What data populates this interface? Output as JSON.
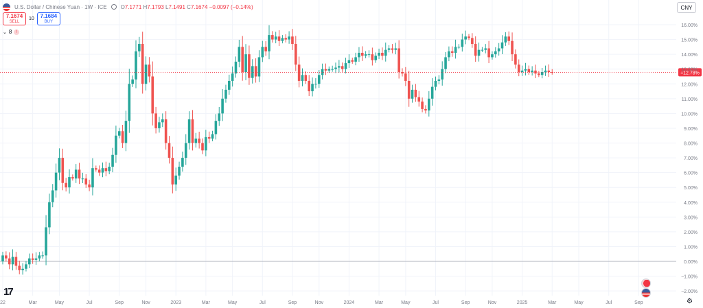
{
  "header": {
    "symbol": "U.S. Dollar / Chinese Yuan · 1W · ICE",
    "ohlc": {
      "open_label": "O",
      "open": "7.1771",
      "high_label": "H",
      "high": "7.1793",
      "low_label": "L",
      "low": "7.1491",
      "close_label": "C",
      "close": "7.1674",
      "change": "−0.0097 (−0.14%)"
    },
    "currency_button": "CNY"
  },
  "trade": {
    "sell_price": "7.1674",
    "sell_label": "SELL",
    "spread": "10",
    "buy_price": "7.1684",
    "buy_label": "BUY"
  },
  "events": {
    "count": "8",
    "alert_glyph": "!"
  },
  "logo": "17",
  "settings_glyph": "⚙",
  "colors": {
    "up": "#26a69a",
    "down": "#ef5350",
    "last_price_label": "#f23645",
    "grid": "#f0f3fa",
    "axis_text": "#787b86",
    "zero_line": "#b2b5be"
  },
  "chart_data": {
    "type": "candlestick",
    "title": "",
    "xlabel": "",
    "ylabel": "",
    "y_axis": {
      "unit": "%",
      "ylim": [
        -3.0,
        16.5
      ],
      "ticks": [
        "16.00%",
        "15.00%",
        "14.00%",
        "13.00%",
        "12.00%",
        "11.00%",
        "10.00%",
        "9.00%",
        "8.00%",
        "7.00%",
        "6.00%",
        "5.00%",
        "4.00%",
        "3.00%",
        "2.00%",
        "1.00%",
        "0.00%",
        "−1.00%",
        "−2.00%"
      ],
      "tick_values": [
        16,
        15,
        14,
        13,
        12,
        11,
        10,
        9,
        8,
        7,
        6,
        5,
        4,
        3,
        2,
        1,
        0,
        -1,
        -2
      ]
    },
    "x_axis": {
      "ticks": [
        "22",
        "Mar",
        "May",
        "Jul",
        "Sep",
        "Nov",
        "2023",
        "Mar",
        "May",
        "Jul",
        "Sep",
        "Nov",
        "2024",
        "Mar",
        "May",
        "Jul",
        "Sep",
        "Nov",
        "2025",
        "Mar",
        "May",
        "Jul",
        "Sep"
      ],
      "tick_weeks": [
        0,
        9,
        17,
        26,
        35,
        43,
        52,
        61,
        69,
        78,
        87,
        95,
        104,
        113,
        121,
        130,
        139,
        147,
        156,
        165,
        173,
        182,
        191
      ]
    },
    "last_value": "+12.78%",
    "last_value_num": 12.78,
    "baseline": 0,
    "grid": true,
    "weekly_closes_pct": [
      0.4,
      0.2,
      -0.2,
      0.3,
      -0.3,
      -0.6,
      -0.5,
      -0.2,
      0.2,
      0.1,
      0.2,
      0.4,
      0.4,
      2.3,
      4.0,
      4.8,
      6.0,
      7.0,
      5.3,
      5.0,
      5.7,
      5.6,
      6.2,
      5.6,
      5.6,
      5.2,
      5.0,
      6.3,
      6.2,
      6.0,
      6.3,
      6.1,
      6.4,
      7.2,
      8.5,
      8.8,
      8.0,
      9.5,
      12.0,
      12.3,
      14.2,
      14.7,
      12.0,
      13.3,
      12.5,
      10.0,
      9.0,
      9.4,
      9.6,
      8.0,
      7.0,
      5.2,
      5.8,
      6.4,
      7.0,
      8.0,
      9.6,
      8.0,
      8.3,
      8.0,
      7.5,
      8.4,
      8.3,
      8.6,
      9.5,
      10.0,
      11.0,
      11.6,
      12.2,
      12.7,
      13.5,
      14.5,
      12.8,
      14.0,
      12.4,
      13.2,
      12.5,
      13.8,
      14.5,
      14.2,
      15.3,
      15.0,
      15.2,
      14.9,
      15.1,
      15.0,
      15.2,
      14.7,
      13.3,
      12.2,
      12.6,
      12.2,
      11.5,
      12.0,
      12.0,
      12.6,
      13.0,
      12.9,
      13.0,
      13.0,
      13.1,
      13.2,
      13.0,
      13.4,
      13.6,
      13.5,
      13.8,
      14.1,
      13.9,
      14.0,
      14.0,
      13.6,
      13.9,
      14.1,
      13.9,
      14.3,
      14.4,
      14.3,
      14.4,
      12.8,
      12.7,
      12.2,
      11.0,
      11.6,
      11.1,
      10.8,
      10.3,
      10.2,
      11.0,
      11.8,
      12.2,
      12.3,
      13.0,
      13.8,
      14.2,
      14.1,
      14.5,
      14.5,
      15.0,
      15.2,
      15.1,
      14.7,
      13.9,
      14.3,
      14.3,
      14.4,
      13.8,
      14.0,
      14.2,
      14.4,
      14.8,
      15.2,
      14.9,
      14.0,
      13.3,
      12.8,
      12.9,
      13.0,
      12.8,
      12.9,
      12.7,
      12.6,
      12.8,
      12.9,
      12.8,
      12.78
    ]
  }
}
